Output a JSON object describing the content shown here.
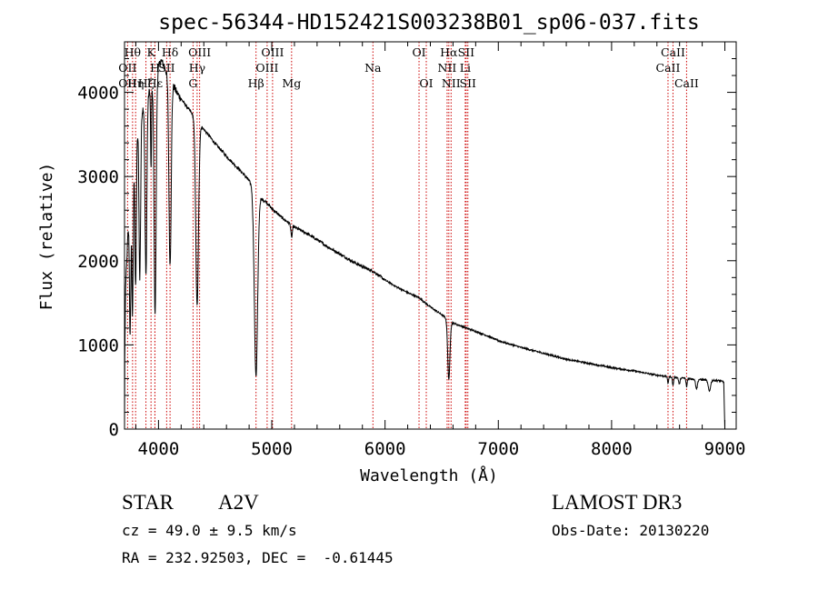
{
  "chart_data": {
    "type": "line",
    "title": "spec-56344-HD152421S003238B01_sp06-037.fits",
    "xlabel": "Wavelength (Å)",
    "ylabel": "Flux (relative)",
    "xlim": [
      3700,
      9100
    ],
    "ylim": [
      0,
      4600
    ],
    "x_ticks": [
      4000,
      5000,
      6000,
      7000,
      8000,
      9000
    ],
    "y_ticks": [
      0,
      1000,
      2000,
      3000,
      4000
    ],
    "spectrum_anchors": [
      [
        3700,
        0
      ],
      [
        3702,
        800
      ],
      [
        3710,
        1700
      ],
      [
        3730,
        2300
      ],
      [
        3760,
        2900
      ],
      [
        3790,
        3300
      ],
      [
        3830,
        3650
      ],
      [
        3870,
        3850
      ],
      [
        3900,
        3950
      ],
      [
        3930,
        4050
      ],
      [
        3960,
        4150
      ],
      [
        3985,
        4250
      ],
      [
        4000,
        4300
      ],
      [
        4020,
        4380
      ],
      [
        4045,
        4330
      ],
      [
        4080,
        4200
      ],
      [
        4120,
        4120
      ],
      [
        4160,
        4000
      ],
      [
        4200,
        3920
      ],
      [
        4250,
        3830
      ],
      [
        4300,
        3740
      ],
      [
        4340,
        3660
      ],
      [
        4400,
        3560
      ],
      [
        4450,
        3480
      ],
      [
        4500,
        3390
      ],
      [
        4550,
        3320
      ],
      [
        4600,
        3240
      ],
      [
        4650,
        3170
      ],
      [
        4700,
        3100
      ],
      [
        4750,
        3030
      ],
      [
        4800,
        2950
      ],
      [
        4820,
        2900
      ],
      [
        4840,
        2730
      ],
      [
        4900,
        2740
      ],
      [
        4950,
        2700
      ],
      [
        5000,
        2620
      ],
      [
        5100,
        2500
      ],
      [
        5200,
        2400
      ],
      [
        5300,
        2330
      ],
      [
        5400,
        2250
      ],
      [
        5500,
        2160
      ],
      [
        5600,
        2080
      ],
      [
        5700,
        2000
      ],
      [
        5800,
        1930
      ],
      [
        5900,
        1870
      ],
      [
        6000,
        1770
      ],
      [
        6100,
        1690
      ],
      [
        6200,
        1620
      ],
      [
        6300,
        1560
      ],
      [
        6400,
        1450
      ],
      [
        6500,
        1360
      ],
      [
        6600,
        1260
      ],
      [
        6700,
        1210
      ],
      [
        6800,
        1160
      ],
      [
        6900,
        1110
      ],
      [
        7000,
        1050
      ],
      [
        7200,
        970
      ],
      [
        7400,
        900
      ],
      [
        7600,
        830
      ],
      [
        7800,
        780
      ],
      [
        8000,
        730
      ],
      [
        8200,
        690
      ],
      [
        8400,
        640
      ],
      [
        8600,
        610
      ],
      [
        8800,
        585
      ],
      [
        8950,
        575
      ],
      [
        8990,
        560
      ],
      [
        9000,
        0
      ]
    ],
    "absorption_features": [
      {
        "center": 3750,
        "depth": 1600,
        "width": 6
      },
      {
        "center": 3771,
        "depth": 1700,
        "width": 6
      },
      {
        "center": 3798,
        "depth": 1700,
        "width": 6
      },
      {
        "center": 3835,
        "depth": 1900,
        "width": 7
      },
      {
        "center": 3889,
        "depth": 2100,
        "width": 8
      },
      {
        "center": 3934,
        "depth": 1000,
        "width": 4
      },
      {
        "center": 3970,
        "depth": 2800,
        "width": 9
      },
      {
        "center": 4102,
        "depth": 2200,
        "width": 10
      },
      {
        "center": 4341,
        "depth": 2200,
        "width": 12
      },
      {
        "center": 4861,
        "depth": 2100,
        "width": 14
      },
      {
        "center": 5175,
        "depth": 150,
        "width": 6
      },
      {
        "center": 6563,
        "depth": 700,
        "width": 10
      },
      {
        "center": 8498,
        "depth": 80,
        "width": 5
      },
      {
        "center": 8542,
        "depth": 100,
        "width": 5
      },
      {
        "center": 8598,
        "depth": 80,
        "width": 6
      },
      {
        "center": 8662,
        "depth": 100,
        "width": 5
      },
      {
        "center": 8750,
        "depth": 110,
        "width": 8
      },
      {
        "center": 8863,
        "depth": 130,
        "width": 10
      }
    ],
    "line_markers": [
      {
        "wl": 3771,
        "label": "Hθ",
        "row": 0
      },
      {
        "wl": 3798,
        "label": "Hη",
        "row": 2
      },
      {
        "wl": 3727,
        "label": "OII",
        "row": 1
      },
      {
        "wl": 3727,
        "label": "OII",
        "row": 2
      },
      {
        "wl": 3889,
        "label": "Hζ",
        "row": 2
      },
      {
        "wl": 3934,
        "label": "K",
        "row": 0
      },
      {
        "wl": 3969,
        "label": "H",
        "row": 1
      },
      {
        "wl": 3968,
        "label": "Hε",
        "row": 2
      },
      {
        "wl": 4072,
        "label": "SII",
        "row": 1
      },
      {
        "wl": 4102,
        "label": "Hδ",
        "row": 0
      },
      {
        "wl": 4341,
        "label": "Hγ",
        "row": 1
      },
      {
        "wl": 4363,
        "label": "OIII",
        "row": 0
      },
      {
        "wl": 4305,
        "label": "G",
        "row": 2
      },
      {
        "wl": 4861,
        "label": "Hβ",
        "row": 2
      },
      {
        "wl": 4959,
        "label": "OIII",
        "row": 1
      },
      {
        "wl": 5007,
        "label": "OIII",
        "row": 0
      },
      {
        "wl": 5175,
        "label": "Mg",
        "row": 2
      },
      {
        "wl": 5893,
        "label": "Na",
        "row": 1
      },
      {
        "wl": 6300,
        "label": "OI",
        "row": 0
      },
      {
        "wl": 6364,
        "label": "OI",
        "row": 2
      },
      {
        "wl": 6548,
        "label": "NII",
        "row": 1
      },
      {
        "wl": 6563,
        "label": "Hα",
        "row": 0
      },
      {
        "wl": 6583,
        "label": "NII",
        "row": 2
      },
      {
        "wl": 6708,
        "label": "Li",
        "row": 1
      },
      {
        "wl": 6716,
        "label": "SII",
        "row": 0
      },
      {
        "wl": 6731,
        "label": "SII",
        "row": 2
      },
      {
        "wl": 8498,
        "label": "CaII",
        "row": 1
      },
      {
        "wl": 8542,
        "label": "CaII",
        "row": 0
      },
      {
        "wl": 8662,
        "label": "CaII",
        "row": 2
      }
    ]
  },
  "info": {
    "object_class": "STAR",
    "subclass": "A2V",
    "survey": "LAMOST DR3",
    "redshift_line": "cz = 49.0 ± 9.5 km/s",
    "obs_date_line": "Obs-Date: 20130220",
    "coords_line": "RA = 232.92503, DEC =  -0.61445"
  }
}
